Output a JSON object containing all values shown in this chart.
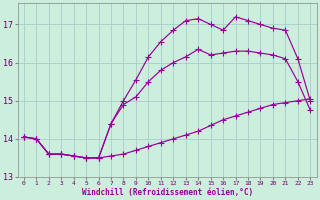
{
  "xlabel": "Windchill (Refroidissement éolien,°C)",
  "bg_color": "#cceedd",
  "line_color": "#990099",
  "grid_color": "#aacccc",
  "xlim": [
    -0.5,
    23.5
  ],
  "ylim": [
    13.0,
    17.55
  ],
  "yticks": [
    13,
    14,
    15,
    16,
    17
  ],
  "xticks": [
    0,
    1,
    2,
    3,
    4,
    5,
    6,
    7,
    8,
    9,
    10,
    11,
    12,
    13,
    14,
    15,
    16,
    17,
    18,
    19,
    20,
    21,
    22,
    23
  ],
  "line1_x": [
    0,
    1,
    2,
    3,
    4,
    5,
    6,
    7,
    8,
    9,
    10,
    11,
    12,
    13,
    14,
    15,
    16,
    17,
    18,
    19,
    20,
    21,
    22,
    23
  ],
  "line1_y": [
    14.05,
    14.0,
    13.6,
    13.6,
    13.55,
    13.5,
    13.5,
    13.55,
    13.6,
    13.7,
    13.8,
    13.9,
    14.0,
    14.1,
    14.2,
    14.35,
    14.5,
    14.6,
    14.7,
    14.8,
    14.9,
    14.95,
    15.0,
    15.05
  ],
  "line2_x": [
    0,
    1,
    2,
    3,
    4,
    5,
    6,
    7,
    8,
    9,
    10,
    11,
    12,
    13,
    14,
    15,
    16,
    17,
    18,
    19,
    20,
    21,
    22,
    23
  ],
  "line2_y": [
    14.05,
    14.0,
    13.6,
    13.6,
    13.55,
    13.5,
    13.5,
    14.4,
    14.9,
    15.1,
    15.5,
    15.8,
    16.0,
    16.15,
    16.35,
    16.2,
    16.25,
    16.3,
    16.3,
    16.25,
    16.2,
    16.1,
    15.5,
    14.75
  ],
  "line3_x": [
    0,
    1,
    2,
    3,
    4,
    5,
    6,
    7,
    8,
    9,
    10,
    11,
    12,
    13,
    14,
    15,
    16,
    17,
    18,
    19,
    20,
    21,
    22,
    23
  ],
  "line3_y": [
    14.05,
    14.0,
    13.6,
    13.6,
    13.55,
    13.5,
    13.5,
    14.4,
    15.0,
    15.55,
    16.15,
    16.55,
    16.85,
    17.1,
    17.15,
    17.0,
    16.85,
    17.2,
    17.1,
    17.0,
    16.9,
    16.85,
    16.1,
    15.0
  ]
}
